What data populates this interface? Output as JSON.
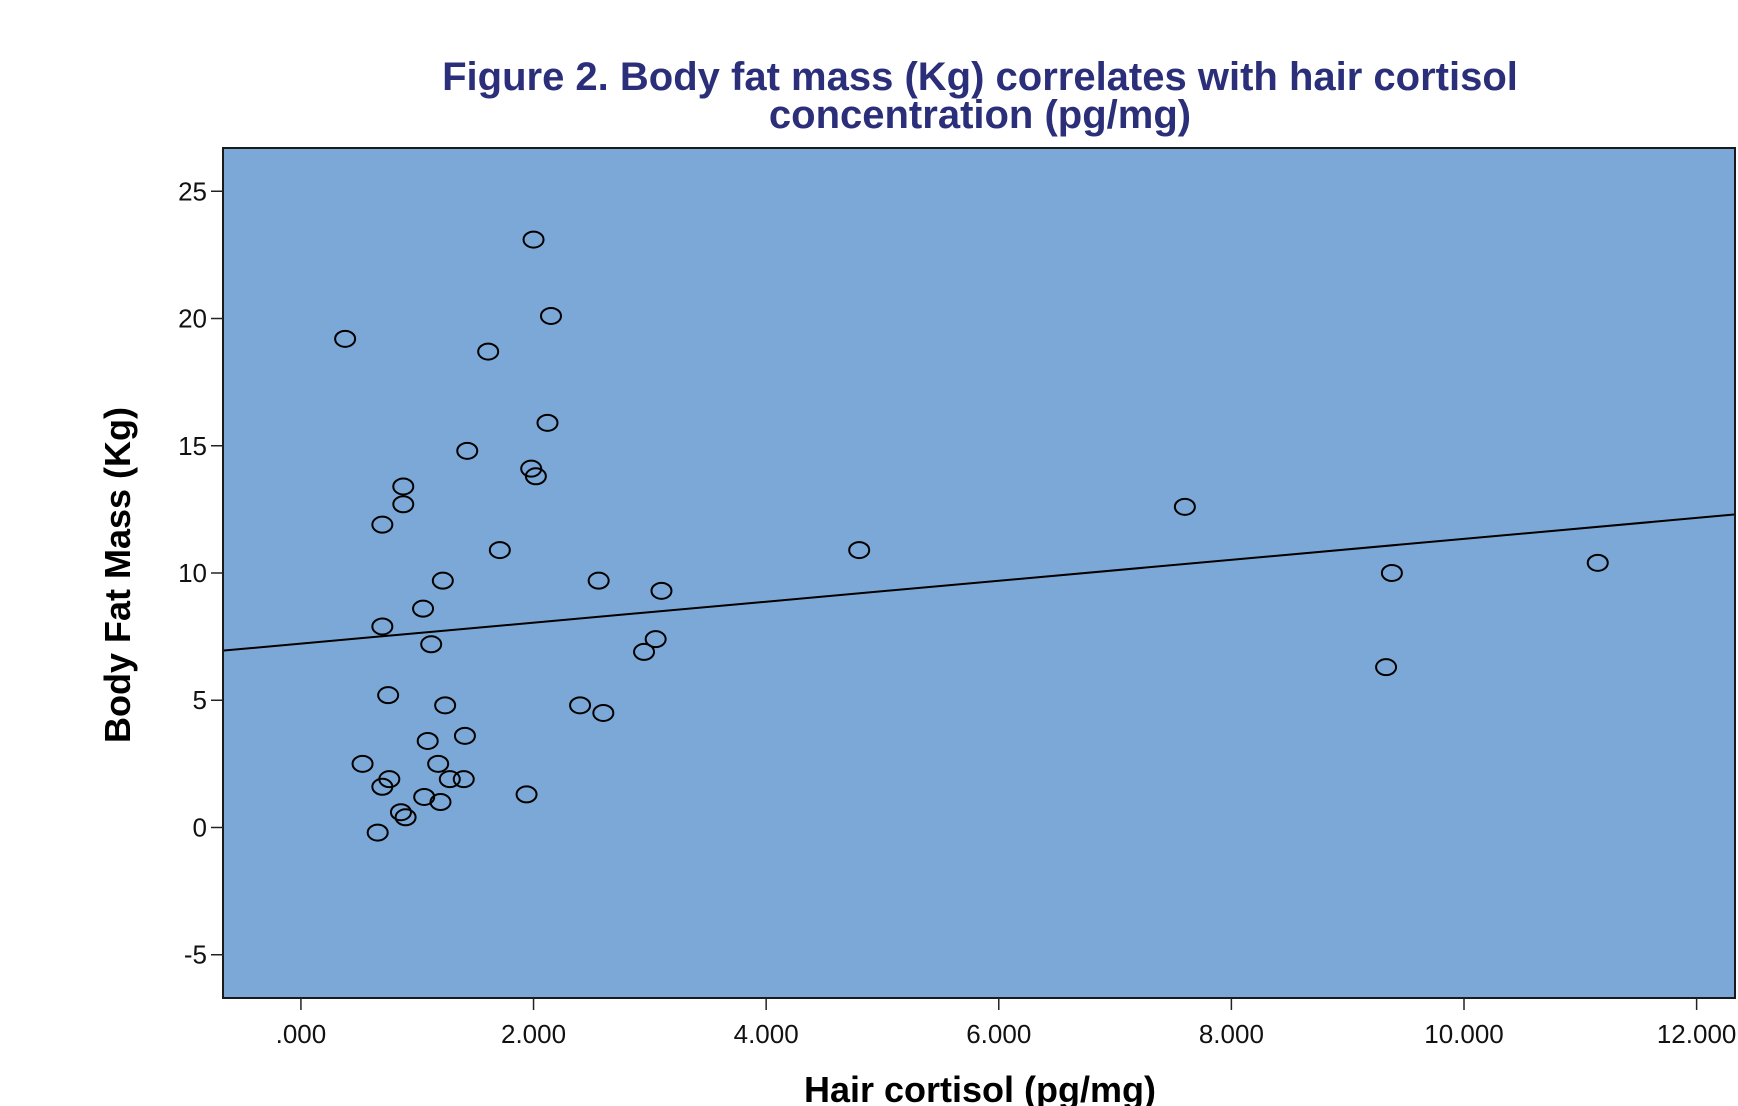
{
  "chart_data": {
    "type": "scatter",
    "title_lines": [
      "Figure 2. Body fat mass (Kg) correlates with hair cortisol",
      "concentration (pg/mg)"
    ],
    "xlabel": "Hair cortisol (pg/mg)",
    "ylabel": "Body Fat Mass (Kg)",
    "xlim": [
      -0.67,
      12.33
    ],
    "ylim": [
      -6.7,
      26.7
    ],
    "x_ticks": [
      {
        "value": 0,
        "label": ".000"
      },
      {
        "value": 2,
        "label": "2.000"
      },
      {
        "value": 4,
        "label": "4.000"
      },
      {
        "value": 6,
        "label": "6.000"
      },
      {
        "value": 8,
        "label": "8.000"
      },
      {
        "value": 10,
        "label": "10.000"
      },
      {
        "value": 12,
        "label": "12.000"
      }
    ],
    "y_ticks": [
      {
        "value": -5,
        "label": "-5"
      },
      {
        "value": 0,
        "label": "0"
      },
      {
        "value": 5,
        "label": "5"
      },
      {
        "value": 10,
        "label": "10"
      },
      {
        "value": 15,
        "label": "15"
      },
      {
        "value": 20,
        "label": "20"
      },
      {
        "value": 25,
        "label": "25"
      }
    ],
    "plot_background": "#7ba8d6",
    "marker_color": "#000000",
    "fit_line": {
      "x": [
        -0.67,
        12.33
      ],
      "y": [
        6.95,
        12.3
      ]
    },
    "points": [
      {
        "x": 0.38,
        "y": 19.2
      },
      {
        "x": 0.53,
        "y": 2.5
      },
      {
        "x": 0.66,
        "y": -0.2
      },
      {
        "x": 0.7,
        "y": 11.9
      },
      {
        "x": 0.7,
        "y": 7.9
      },
      {
        "x": 0.7,
        "y": 1.6
      },
      {
        "x": 0.75,
        "y": 5.2
      },
      {
        "x": 0.76,
        "y": 1.9
      },
      {
        "x": 0.86,
        "y": 0.6
      },
      {
        "x": 0.88,
        "y": 13.4
      },
      {
        "x": 0.88,
        "y": 12.7
      },
      {
        "x": 0.9,
        "y": 0.4
      },
      {
        "x": 1.05,
        "y": 8.6
      },
      {
        "x": 1.06,
        "y": 1.2
      },
      {
        "x": 1.09,
        "y": 3.4
      },
      {
        "x": 1.12,
        "y": 7.2
      },
      {
        "x": 1.18,
        "y": 2.5
      },
      {
        "x": 1.2,
        "y": 1.0
      },
      {
        "x": 1.22,
        "y": 9.7
      },
      {
        "x": 1.24,
        "y": 4.8
      },
      {
        "x": 1.28,
        "y": 1.9
      },
      {
        "x": 1.4,
        "y": 1.9
      },
      {
        "x": 1.41,
        "y": 3.6
      },
      {
        "x": 1.43,
        "y": 14.8
      },
      {
        "x": 1.61,
        "y": 18.7
      },
      {
        "x": 1.71,
        "y": 10.9
      },
      {
        "x": 1.94,
        "y": 1.3
      },
      {
        "x": 1.98,
        "y": 14.1
      },
      {
        "x": 2.0,
        "y": 23.1
      },
      {
        "x": 2.02,
        "y": 13.8
      },
      {
        "x": 2.12,
        "y": 15.9
      },
      {
        "x": 2.15,
        "y": 20.1
      },
      {
        "x": 2.4,
        "y": 4.8
      },
      {
        "x": 2.56,
        "y": 9.7
      },
      {
        "x": 2.6,
        "y": 4.5
      },
      {
        "x": 2.95,
        "y": 6.9
      },
      {
        "x": 3.05,
        "y": 7.4
      },
      {
        "x": 3.1,
        "y": 9.3
      },
      {
        "x": 4.8,
        "y": 10.9
      },
      {
        "x": 7.6,
        "y": 12.6
      },
      {
        "x": 9.33,
        "y": 6.3
      },
      {
        "x": 9.38,
        "y": 10.0
      },
      {
        "x": 11.15,
        "y": 10.4
      }
    ]
  }
}
